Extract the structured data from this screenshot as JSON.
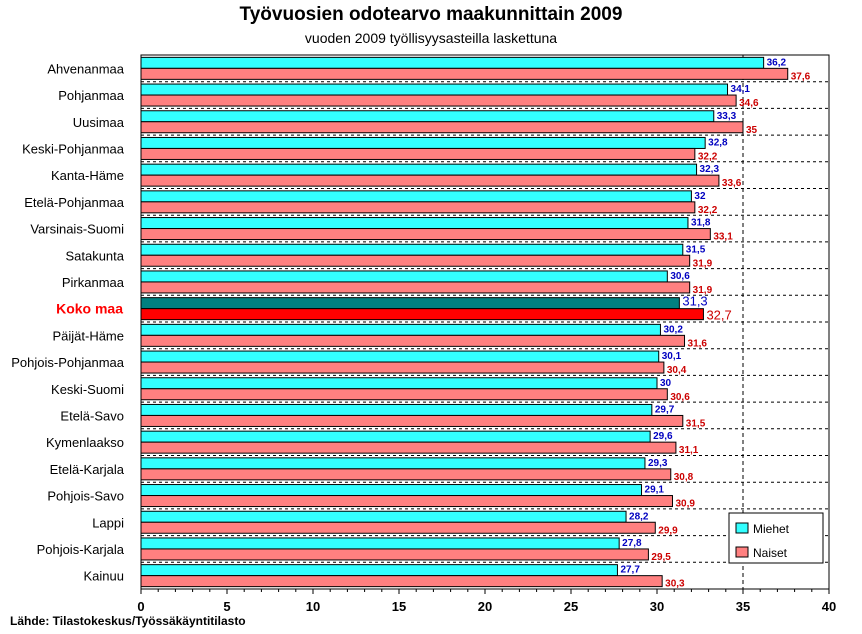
{
  "chart_data": {
    "type": "bar",
    "orientation": "horizontal",
    "title": "Työvuosien odotearvo maakunnittain 2009",
    "subtitle": "vuoden 2009 työllisyysasteilla laskettuna",
    "source": "Lähde: Tilastokeskus/Työssäkäyntitilasto",
    "categories": [
      "Ahvenanmaa",
      "Pohjanmaa",
      "Uusimaa",
      "Keski-Pohjanmaa",
      "Kanta-Häme",
      "Etelä-Pohjanmaa",
      "Varsinais-Suomi",
      "Satakunta",
      "Pirkanmaa",
      "Koko maa",
      "Päijät-Häme",
      "Pohjois-Pohjanmaa",
      "Keski-Suomi",
      "Etelä-Savo",
      "Kymenlaakso",
      "Etelä-Karjala",
      "Pohjois-Savo",
      "Lappi",
      "Pohjois-Karjala",
      "Kainuu"
    ],
    "highlight_category": "Koko maa",
    "series": [
      {
        "name": "Miehet",
        "color": "#33ffff",
        "highlight_color": "#008080",
        "values": [
          36.2,
          34.1,
          33.3,
          32.8,
          32.3,
          32,
          31.8,
          31.5,
          30.6,
          31.3,
          30.2,
          30.1,
          30,
          29.7,
          29.6,
          29.3,
          29.1,
          28.2,
          27.8,
          27.7
        ],
        "labels": [
          "36,2",
          "34,1",
          "33,3",
          "32,8",
          "32,3",
          "32",
          "31,8",
          "31,5",
          "30,6",
          "31,3",
          "30,2",
          "30,1",
          "30",
          "29,7",
          "29,6",
          "29,3",
          "29,1",
          "28,2",
          "27,8",
          "27,7"
        ]
      },
      {
        "name": "Naiset",
        "color": "#ff8080",
        "highlight_color": "#ff0000",
        "values": [
          37.6,
          34.6,
          35,
          32.2,
          33.6,
          32.2,
          33.1,
          31.9,
          31.9,
          32.7,
          31.6,
          30.4,
          30.6,
          31.5,
          31.1,
          30.8,
          30.9,
          29.9,
          29.5,
          30.3
        ],
        "labels": [
          "37,6",
          "34,6",
          "35",
          "32,2",
          "33,6",
          "32,2",
          "33,1",
          "31,9",
          "31,9",
          "32,7",
          "31,6",
          "30,4",
          "30,6",
          "31,5",
          "31,1",
          "30,8",
          "30,9",
          "29,9",
          "29,5",
          "30,3"
        ]
      }
    ],
    "xlim": [
      0,
      40
    ],
    "xticks": [
      0,
      5,
      10,
      15,
      20,
      25,
      30,
      35,
      40
    ],
    "reference_line": 35,
    "grid": "dashed horizontal",
    "legend_position": "bottom-right"
  }
}
